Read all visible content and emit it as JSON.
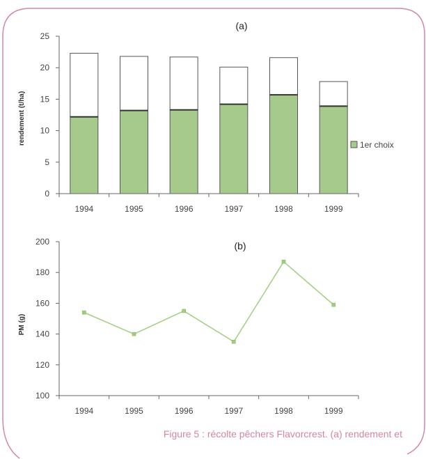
{
  "colors": {
    "frame": "#d7879f",
    "bar_fill": "#a6c98c",
    "bar_stroke": "#555555",
    "total_fill": "#ffffff",
    "line": "#9fcf7e",
    "axis": "#666666",
    "caption": "#d5869c"
  },
  "caption": "Figure 5 : récolte pêchers Flavorcrest. (a) rendement et",
  "chart_data": [
    {
      "type": "bar",
      "panel_label": "(a)",
      "categories": [
        "1994",
        "1995",
        "1996",
        "1997",
        "1998",
        "1999"
      ],
      "series": [
        {
          "name": "1er choix",
          "values": [
            12.2,
            13.2,
            13.3,
            14.2,
            15.7,
            13.9
          ]
        },
        {
          "values": [
            10.1,
            8.6,
            8.4,
            5.9,
            5.9,
            3.9
          ]
        }
      ],
      "totals": [
        22.3,
        21.8,
        21.7,
        20.1,
        21.6,
        17.8
      ],
      "ylabel": "rendement (t/ha)",
      "ylim": [
        0,
        25
      ],
      "yticks": [
        "0",
        "5",
        "10",
        "15",
        "20",
        "25"
      ],
      "stacked": true,
      "legend": "right",
      "grid": false
    },
    {
      "type": "line",
      "panel_label": "(b)",
      "x": [
        "1994",
        "1995",
        "1996",
        "1997",
        "1998",
        "1999"
      ],
      "series": [
        {
          "values": [
            154,
            140,
            155,
            135,
            187,
            159
          ]
        }
      ],
      "ylabel": "PM (g)",
      "ylim": [
        100,
        200
      ],
      "yticks": [
        "100",
        "120",
        "140",
        "160",
        "180",
        "200"
      ],
      "grid": false
    }
  ]
}
